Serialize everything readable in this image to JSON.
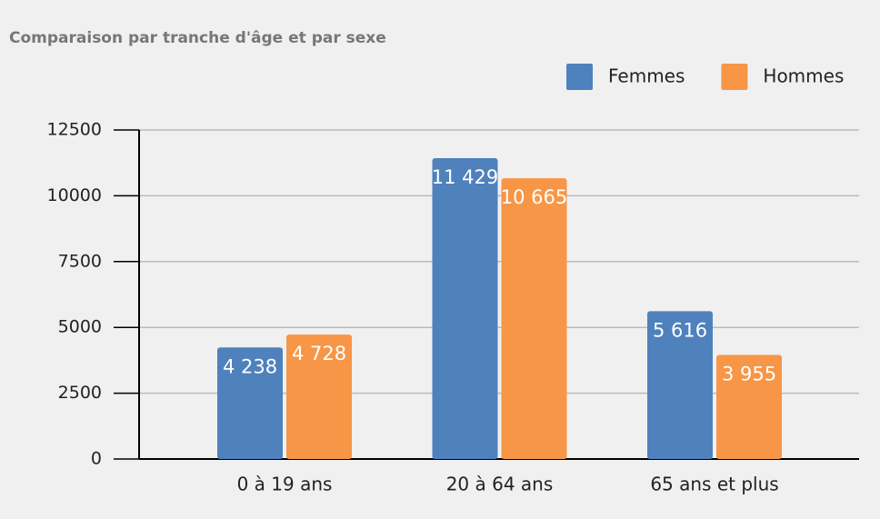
{
  "chart_data": {
    "type": "bar",
    "title": "Comparaison par tranche d'âge et par sexe",
    "categories": [
      "0 à 19 ans",
      "20 à 64 ans",
      "65 ans et plus"
    ],
    "series": [
      {
        "name": "Femmes",
        "color": "#4f81bd",
        "values": [
          4238,
          11429,
          5616
        ],
        "value_labels": [
          "4 238",
          "11 429",
          "5 616"
        ]
      },
      {
        "name": "Hommes",
        "color": "#f79646",
        "values": [
          4728,
          10665,
          3955
        ],
        "value_labels": [
          "4 728",
          "10 665",
          "3 955"
        ]
      }
    ],
    "ylim": [
      0,
      12500
    ],
    "yticks": [
      0,
      2500,
      5000,
      7500,
      10000,
      12500
    ],
    "grid": true,
    "legend": "top-right"
  }
}
